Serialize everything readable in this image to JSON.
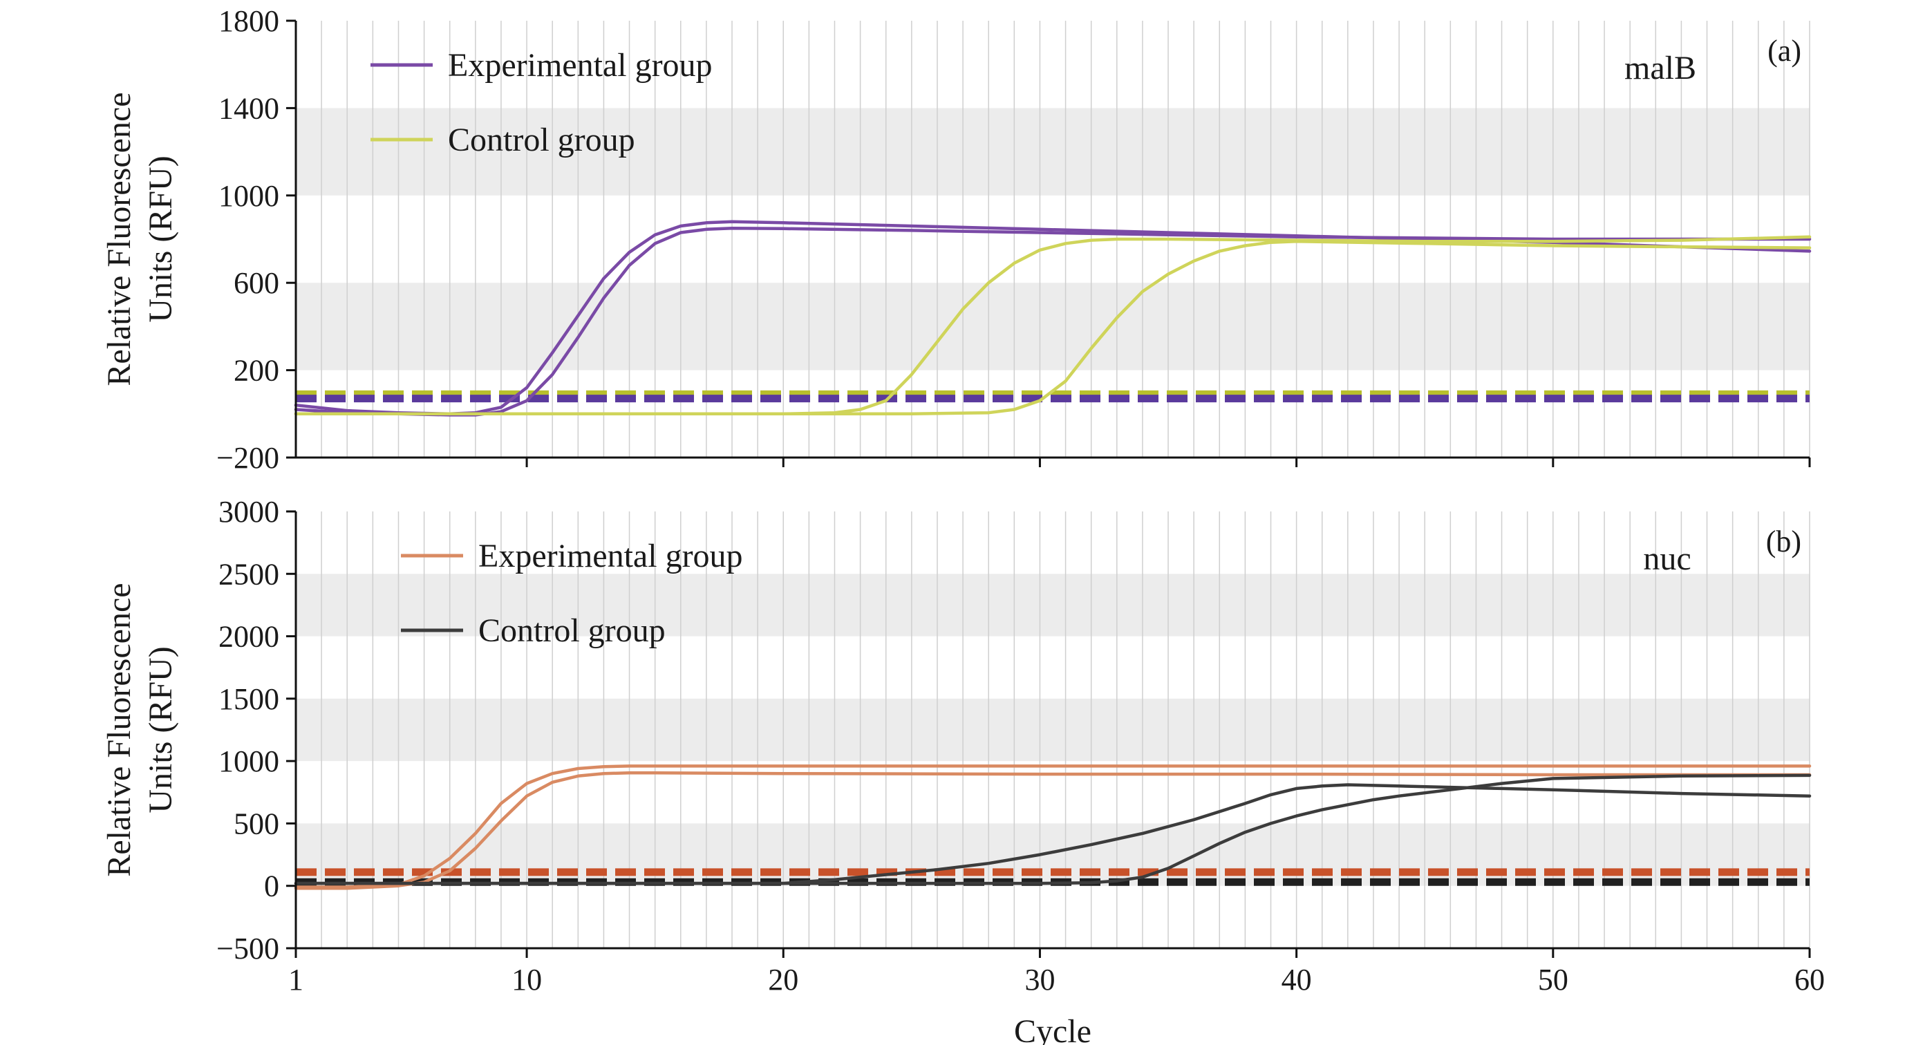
{
  "figure": {
    "xlabel": "Cycle"
  },
  "colors": {
    "malB_experimental": "#7a4aa6",
    "malB_control": "#cfd45a",
    "malB_threshold_experimental": "#5a3a9c",
    "malB_threshold_control": "#b8bf2c",
    "nuc_experimental": "#d98a62",
    "nuc_control": "#3c3c3c",
    "nuc_threshold_experimental": "#c8522a",
    "nuc_threshold_control": "#202020",
    "panel_band": "#ececec",
    "grid": "#cfcfcf"
  },
  "chart_data": [
    {
      "type": "line",
      "panel_label": "(a)",
      "gene": "malB",
      "ylabel_line1": "Relative Fluorescence",
      "ylabel_line2": "Units (RFU)",
      "xlabel": "",
      "xlim": [
        1,
        60
      ],
      "ylim": [
        -200,
        1800
      ],
      "x_ticks": [
        10,
        20,
        30,
        40,
        50,
        60
      ],
      "y_ticks": [
        -200,
        200,
        600,
        1000,
        1400,
        1800
      ],
      "y_tick_labels": [
        "−200",
        "200",
        "600",
        "1000",
        "1400",
        "1800"
      ],
      "grid": true,
      "legend_position": "top-left",
      "legend": [
        {
          "label": "Experimental group",
          "color": "#7a4aa6"
        },
        {
          "label": "Control group",
          "color": "#cfd45a"
        }
      ],
      "thresholds": [
        {
          "group": "Control group",
          "y": 90,
          "color": "#b8bf2c"
        },
        {
          "group": "Experimental group",
          "y": 70,
          "color": "#5a3a9c"
        }
      ],
      "series": [
        {
          "group": "Experimental group",
          "color": "#7a4aa6",
          "x": [
            1,
            3,
            5,
            7,
            8,
            9,
            10,
            11,
            12,
            13,
            14,
            15,
            16,
            17,
            18,
            20,
            25,
            30,
            35,
            40,
            45,
            50,
            55,
            60
          ],
          "y": [
            40,
            15,
            5,
            0,
            5,
            30,
            120,
            280,
            450,
            620,
            740,
            820,
            860,
            875,
            880,
            875,
            860,
            845,
            830,
            815,
            800,
            785,
            765,
            745
          ]
        },
        {
          "group": "Experimental group",
          "color": "#7a4aa6",
          "x": [
            1,
            3,
            5,
            7,
            8,
            9,
            10,
            11,
            12,
            13,
            14,
            15,
            16,
            17,
            18,
            20,
            25,
            30,
            35,
            40,
            45,
            50,
            55,
            60
          ],
          "y": [
            20,
            5,
            0,
            -5,
            -5,
            10,
            60,
            180,
            350,
            530,
            680,
            780,
            830,
            845,
            850,
            848,
            840,
            830,
            820,
            810,
            805,
            800,
            800,
            800
          ]
        },
        {
          "group": "Control group",
          "color": "#cfd45a",
          "x": [
            1,
            5,
            10,
            15,
            20,
            22,
            23,
            24,
            25,
            26,
            27,
            28,
            29,
            30,
            31,
            32,
            33,
            35,
            40,
            45,
            50,
            55,
            60
          ],
          "y": [
            0,
            0,
            0,
            0,
            0,
            5,
            20,
            60,
            180,
            330,
            480,
            600,
            690,
            750,
            780,
            795,
            800,
            800,
            795,
            790,
            790,
            795,
            810
          ]
        },
        {
          "group": "Control group",
          "color": "#cfd45a",
          "x": [
            1,
            5,
            10,
            15,
            20,
            25,
            28,
            29,
            30,
            31,
            32,
            33,
            34,
            35,
            36,
            37,
            38,
            39,
            40,
            45,
            50,
            55,
            60
          ],
          "y": [
            0,
            0,
            0,
            0,
            0,
            0,
            5,
            20,
            60,
            150,
            300,
            440,
            560,
            640,
            700,
            745,
            770,
            785,
            790,
            780,
            770,
            765,
            760
          ]
        }
      ]
    },
    {
      "type": "line",
      "panel_label": "(b)",
      "gene": "nuc",
      "ylabel_line1": "Relative Fluorescence",
      "ylabel_line2": "Units (RFU)",
      "xlabel": "Cycle",
      "xlim": [
        1,
        60
      ],
      "ylim": [
        -500,
        3000
      ],
      "x_ticks": [
        1,
        10,
        20,
        30,
        40,
        50,
        60
      ],
      "y_ticks": [
        -500,
        0,
        500,
        1000,
        1500,
        2000,
        2500,
        3000
      ],
      "y_tick_labels": [
        "−500",
        "0",
        "500",
        "1000",
        "1500",
        "2000",
        "2500",
        "3000"
      ],
      "grid": true,
      "legend_position": "top-left",
      "legend": [
        {
          "label": "Experimental group",
          "color": "#d98a62"
        },
        {
          "label": "Control group",
          "color": "#3c3c3c"
        }
      ],
      "thresholds": [
        {
          "group": "Experimental group",
          "y": 110,
          "color": "#c8522a"
        },
        {
          "group": "Control group",
          "y": 30,
          "color": "#202020"
        }
      ],
      "series": [
        {
          "group": "Experimental group",
          "color": "#d98a62",
          "x": [
            1,
            3,
            5,
            6,
            7,
            8,
            9,
            10,
            11,
            12,
            13,
            14,
            15,
            20,
            30,
            40,
            50,
            60
          ],
          "y": [
            -10,
            -10,
            10,
            80,
            220,
            420,
            660,
            820,
            900,
            940,
            955,
            960,
            960,
            960,
            960,
            960,
            960,
            960
          ]
        },
        {
          "group": "Experimental group",
          "color": "#d98a62",
          "x": [
            1,
            3,
            5,
            6,
            7,
            8,
            9,
            10,
            11,
            12,
            13,
            14,
            15,
            20,
            30,
            40,
            50,
            60
          ],
          "y": [
            -20,
            -20,
            0,
            30,
            120,
            300,
            520,
            720,
            830,
            880,
            900,
            905,
            905,
            900,
            895,
            895,
            890,
            890
          ]
        },
        {
          "group": "Control group",
          "color": "#3c3c3c",
          "x": [
            1,
            5,
            10,
            15,
            20,
            22,
            24,
            26,
            28,
            30,
            32,
            34,
            36,
            38,
            39,
            40,
            41,
            42,
            44,
            46,
            48,
            50,
            55,
            60
          ],
          "y": [
            20,
            20,
            20,
            20,
            20,
            50,
            90,
            130,
            180,
            250,
            330,
            420,
            530,
            660,
            730,
            780,
            800,
            810,
            800,
            790,
            780,
            770,
            740,
            720
          ]
        },
        {
          "group": "Control group",
          "color": "#3c3c3c",
          "x": [
            1,
            5,
            10,
            20,
            30,
            32,
            33,
            34,
            35,
            36,
            37,
            38,
            39,
            40,
            41,
            42,
            43,
            44,
            46,
            48,
            50,
            55,
            60
          ],
          "y": [
            20,
            20,
            20,
            20,
            20,
            25,
            40,
            70,
            140,
            240,
            340,
            430,
            500,
            560,
            610,
            650,
            690,
            720,
            770,
            820,
            860,
            880,
            885
          ]
        }
      ]
    }
  ]
}
